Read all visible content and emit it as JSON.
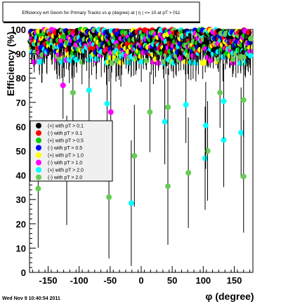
{
  "chart_data": {
    "type": "scatter",
    "title": "Efficiency wrt Geom for Primary Tracks vs φ (degree) at | η | <= 10 at pT > 011",
    "xlabel": "φ (degree)",
    "ylabel": "Efficiency (%)",
    "xlim": [
      -180,
      180
    ],
    "ylim": [
      0,
      100
    ],
    "x_ticks": [
      -150,
      -100,
      -50,
      0,
      50,
      100,
      150
    ],
    "y_ticks": [
      0,
      10,
      20,
      30,
      40,
      50,
      60,
      70,
      80,
      90,
      100
    ],
    "grid": false,
    "legend_position": "left-middle",
    "error_bars": true,
    "series": [
      {
        "name": "(+) with pT > 0.1",
        "color": "#000000"
      },
      {
        "name": "(-) with pT > 0.1",
        "color": "#ff0000"
      },
      {
        "name": "(+) with pT > 0.5",
        "color": "#00cc00"
      },
      {
        "name": "(-) with pT > 0.5",
        "color": "#0000ff"
      },
      {
        "name": "(+) with pT > 1.0",
        "color": "#ffff00"
      },
      {
        "name": "(-) with pT > 1.0",
        "color": "#ff00ff"
      },
      {
        "name": "(+) with pT > 2.0",
        "color": "#00ffff"
      },
      {
        "name": "(-) with pT > 2.0",
        "color": "#66cc55"
      }
    ],
    "outlier_points": [
      {
        "series": 7,
        "x": -166,
        "y": 34.5
      },
      {
        "series": 7,
        "x": -120,
        "y": 42
      },
      {
        "series": 7,
        "x": -52,
        "y": 31
      },
      {
        "series": 5,
        "x": -49,
        "y": 66
      },
      {
        "series": 6,
        "x": -16,
        "y": 28.5
      },
      {
        "series": 7,
        "x": -11,
        "y": 48
      },
      {
        "series": 7,
        "x": 14,
        "y": 66
      },
      {
        "series": 7,
        "x": 43,
        "y": 35.5
      },
      {
        "series": 7,
        "x": 43,
        "y": 68
      },
      {
        "series": 6,
        "x": 38,
        "y": 62
      },
      {
        "series": 7,
        "x": 76,
        "y": 41
      },
      {
        "series": 6,
        "x": 103,
        "y": 47
      },
      {
        "series": 7,
        "x": 107,
        "y": 50
      },
      {
        "series": 6,
        "x": 104,
        "y": 60.5
      },
      {
        "series": 6,
        "x": 133,
        "y": 54.5
      },
      {
        "series": 6,
        "x": 133,
        "y": 70.5
      },
      {
        "series": 6,
        "x": 161,
        "y": 57.5
      },
      {
        "series": 7,
        "x": 165,
        "y": 39.5
      },
      {
        "series": 7,
        "x": 165,
        "y": 71
      },
      {
        "series": 5,
        "x": -126,
        "y": 77
      },
      {
        "series": 6,
        "x": -84,
        "y": 75
      },
      {
        "series": 7,
        "x": -110,
        "y": 74
      },
      {
        "series": 6,
        "x": 72,
        "y": 69
      },
      {
        "series": 7,
        "x": 127,
        "y": 74
      },
      {
        "series": 6,
        "x": -55,
        "y": 69.5
      }
    ]
  },
  "footer": {
    "timestamp": "Wed Nov  9 10:40:54 2011"
  }
}
